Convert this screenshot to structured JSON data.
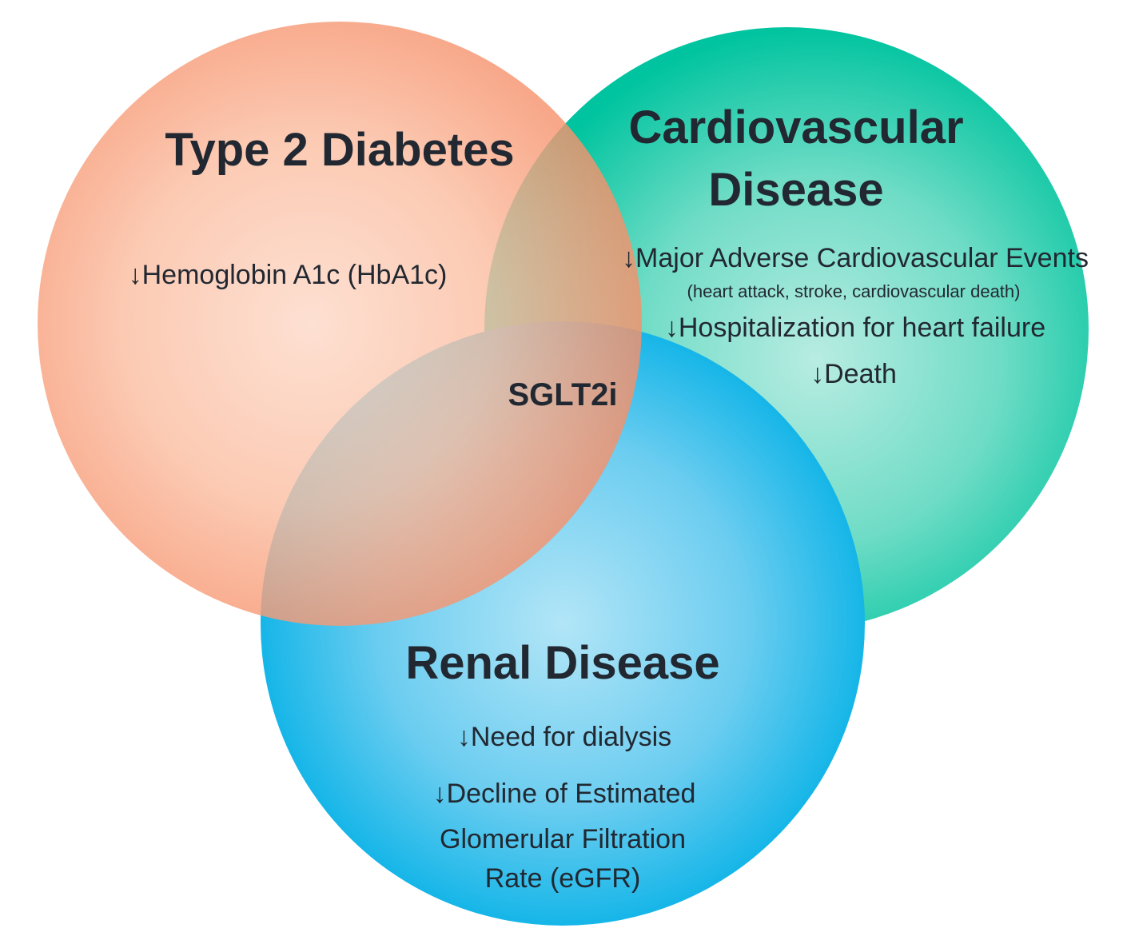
{
  "colors": {
    "diabetes": "#f6916a",
    "cardiovascular": "#00c4a0",
    "renal": "#00b2e6",
    "text": "#222831"
  },
  "center_label": "SGLT2i",
  "diabetes": {
    "title": "Type 2 Diabetes",
    "items": [
      "↓Hemoglobin A1c (HbA1c)"
    ]
  },
  "cardiovascular": {
    "title_line1": "Cardiovascular",
    "title_line2": "Disease",
    "items": [
      "↓Major Adverse Cardiovascular Events",
      "(heart attack, stroke, cardiovascular death)",
      "↓Hospitalization for heart failure",
      "↓Death"
    ]
  },
  "renal": {
    "title": "Renal Disease",
    "items": [
      "↓Need for dialysis",
      "↓Decline of Estimated",
      "Glomerular Filtration",
      "Rate (eGFR)"
    ]
  }
}
